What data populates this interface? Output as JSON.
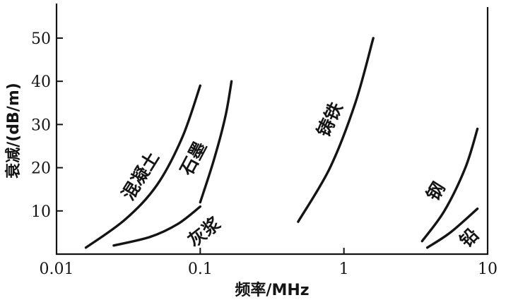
{
  "chart_data": {
    "type": "line",
    "title": "",
    "xlabel": "频率/MHz",
    "ylabel": "衰减/(dB/m)",
    "xscale": "log",
    "xlim": [
      0.01,
      10
    ],
    "ylim": [
      0,
      58
    ],
    "xticks": [
      0.01,
      0.1,
      1,
      10
    ],
    "xtick_labels": [
      "0.01",
      "0.1",
      "1",
      "10"
    ],
    "yticks": [
      10,
      20,
      30,
      40,
      50
    ],
    "ytick_labels": [
      "10",
      "20",
      "30",
      "40",
      "50"
    ],
    "grid": false,
    "legend": "none",
    "series": [
      {
        "name": "混凝土",
        "x": [
          0.016,
          0.03,
          0.05,
          0.075,
          0.1
        ],
        "y": [
          1.5,
          8,
          16,
          27,
          39
        ]
      },
      {
        "name": "灰浆",
        "x": [
          0.025,
          0.045,
          0.07,
          0.1
        ],
        "y": [
          2,
          4,
          7,
          11
        ]
      },
      {
        "name": "石墨",
        "x": [
          0.1,
          0.125,
          0.15,
          0.165
        ],
        "y": [
          12,
          22,
          32,
          40
        ]
      },
      {
        "name": "铸铁",
        "x": [
          0.48,
          0.8,
          1.2,
          1.6
        ],
        "y": [
          7.5,
          20,
          35,
          50
        ]
      },
      {
        "name": "钢",
        "x": [
          3.5,
          5,
          7,
          8.5
        ],
        "y": [
          3,
          10,
          20,
          29
        ]
      },
      {
        "name": "铅",
        "x": [
          3.8,
          5.5,
          8.5
        ],
        "y": [
          1.5,
          5,
          10.5
        ]
      }
    ]
  }
}
